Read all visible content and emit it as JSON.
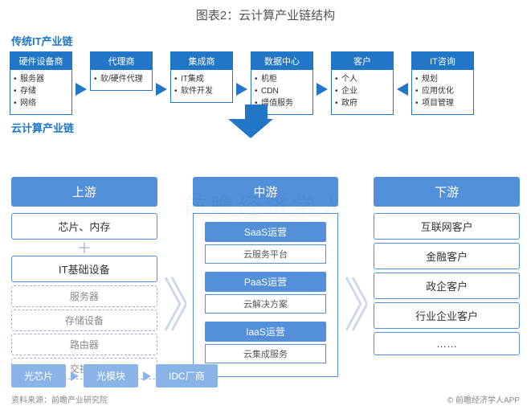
{
  "title": "图表2：云计算产业链结构",
  "colors": {
    "primary": "#2176c7",
    "mid": "#5390d9",
    "light": "#8ab4e8",
    "text": "#555",
    "muted": "#888"
  },
  "watermark": "前瞻经济学人",
  "traditional_label": "传统IT产业链",
  "cloud_label": "云计算产业链",
  "top_nodes": [
    {
      "title": "硬件设备商",
      "items": [
        "服务器",
        "存储",
        "网络"
      ]
    },
    {
      "title": "代理商",
      "items": [
        "软/硬件代理"
      ]
    },
    {
      "title": "集成商",
      "items": [
        "IT集成",
        "软件开发"
      ]
    },
    {
      "title": "数据中心",
      "items": [
        "机柜",
        "CDN",
        "增值服务"
      ]
    },
    {
      "title": "客户",
      "items": [
        "个人",
        "企业",
        "政府"
      ]
    },
    {
      "title": "IT咨询",
      "items": [
        "规划",
        "应用优化",
        "项目管理"
      ]
    }
  ],
  "top_arrow_dirs": [
    "r",
    "r",
    "r",
    "r",
    "l"
  ],
  "columns": {
    "upstream": {
      "header": "上游",
      "block1": "芯片、内存",
      "block2": "IT基础设备",
      "sub": [
        "服务器",
        "存储设备",
        "路由器",
        "交换机"
      ]
    },
    "mid": {
      "header": "中游",
      "blocks": [
        {
          "t": "SaaS运营",
          "s": "云服务平台"
        },
        {
          "t": "PaaS运营",
          "s": "云解决方案"
        },
        {
          "t": "IaaS运营",
          "s": "云集成服务"
        }
      ]
    },
    "downstream": {
      "header": "下游",
      "items": [
        "互联网客户",
        "金融客户",
        "政企客户",
        "行业企业客户",
        "……"
      ]
    }
  },
  "bottom": [
    "光芯片",
    "光模块",
    "IDC厂商"
  ],
  "footer": {
    "left": "资料来源：前瞻产业研究院",
    "right": "© 前瞻经济学人APP"
  }
}
